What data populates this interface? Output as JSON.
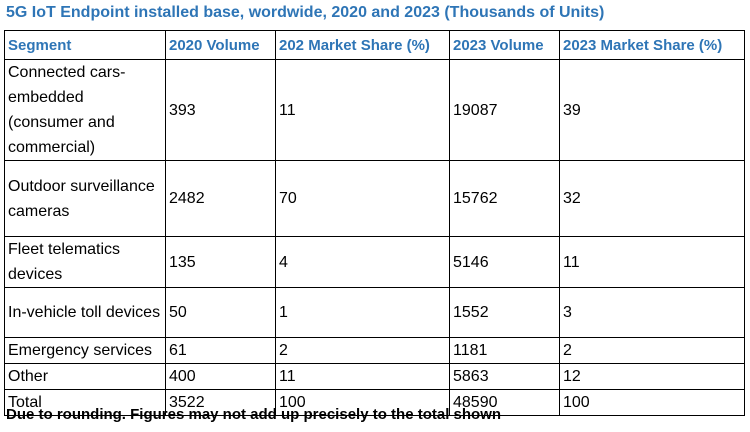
{
  "title": "5G IoT Endpoint installed base, wordwide, 2020 and 2023 (Thousands of Units)",
  "table": {
    "headers": [
      "Segment",
      "2020 Volume",
      "202 Market Share (%)",
      "2023 Volume",
      "2023 Market Share (%)"
    ],
    "rows": [
      [
        "Connected cars-embedded (consumer and commercial)",
        "393",
        "11",
        "19087",
        "39"
      ],
      [
        "Outdoor surveillance cameras",
        "2482",
        "70",
        "15762",
        "32"
      ],
      [
        "Fleet telematics devices",
        "135",
        "4",
        "5146",
        "11"
      ],
      [
        "In-vehicle toll devices",
        "50",
        "1",
        "1552",
        "3"
      ],
      [
        "Emergency services",
        "61",
        "2",
        "1181",
        "2"
      ],
      [
        "Other",
        "400",
        "11",
        "5863",
        "12"
      ],
      [
        "Total",
        "3522",
        "100",
        "48590",
        "100"
      ]
    ]
  },
  "footnote": "Due to rounding. Figures may not add up precisely to the total shown",
  "colors": {
    "header_text": "#2e75b6",
    "border": "#000000"
  }
}
